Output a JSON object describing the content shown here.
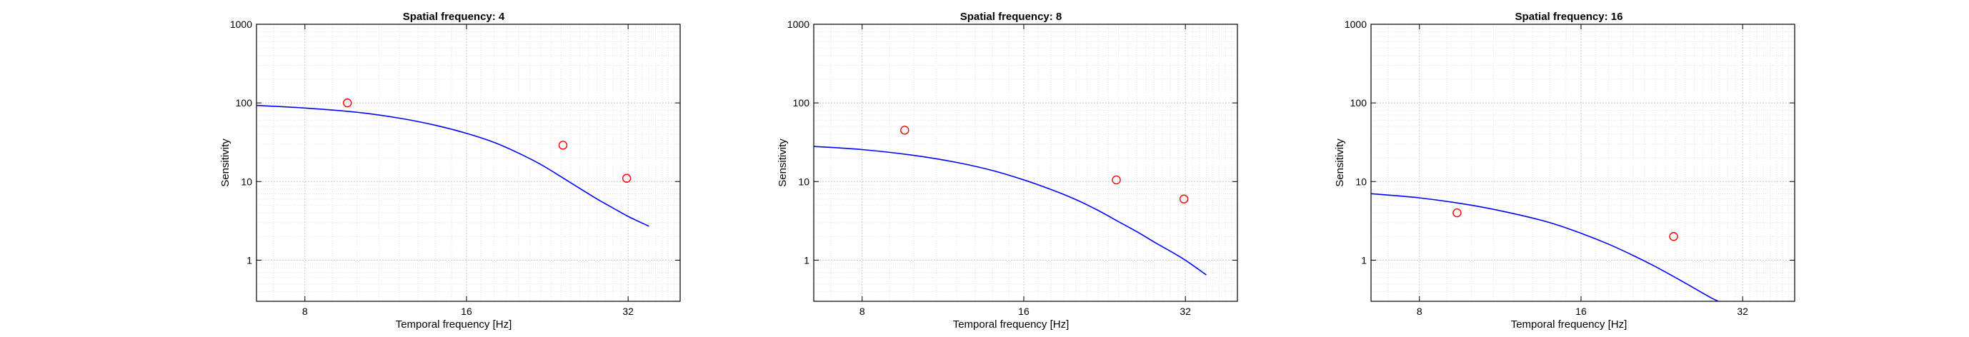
{
  "chart_data": [
    {
      "type": "line",
      "title": "Spatial frequency: 4",
      "xlabel": "Temporal frequency [Hz]",
      "ylabel": "Sensitivity",
      "xscale": "log2",
      "yscale": "log",
      "xlim": [
        6.5,
        40
      ],
      "ylim": [
        0.3,
        1000
      ],
      "xticks": [
        8,
        16,
        32
      ],
      "yticks": [
        1,
        10,
        100,
        1000
      ],
      "grid": true,
      "series": [
        {
          "kind": "line",
          "color": "#0000ff",
          "x": [
            6.5,
            8,
            10,
            12,
            14,
            16,
            18,
            20,
            22,
            24,
            26,
            28,
            30,
            32,
            35
          ],
          "y": [
            93,
            86,
            76,
            64,
            52,
            41,
            31.5,
            23,
            16.5,
            11.5,
            8.2,
            6.0,
            4.6,
            3.6,
            2.7
          ]
        },
        {
          "kind": "scatter",
          "marker": "circle",
          "color": "#ff0000",
          "x": [
            9.6,
            24.2,
            31.8
          ],
          "y": [
            100,
            29,
            11
          ]
        }
      ]
    },
    {
      "type": "line",
      "title": "Spatial frequency: 8",
      "xlabel": "Temporal frequency [Hz]",
      "ylabel": "Sensitivity",
      "xscale": "log2",
      "yscale": "log",
      "xlim": [
        6.5,
        40
      ],
      "ylim": [
        0.3,
        1000
      ],
      "xticks": [
        8,
        16,
        32
      ],
      "yticks": [
        1,
        10,
        100,
        1000
      ],
      "grid": true,
      "series": [
        {
          "kind": "line",
          "color": "#0000ff",
          "x": [
            6.5,
            8,
            10,
            12,
            14,
            16,
            18,
            20,
            22,
            24,
            26,
            28,
            30,
            32,
            35
          ],
          "y": [
            28,
            25.5,
            21.5,
            17.5,
            13.8,
            10.5,
            7.9,
            5.9,
            4.3,
            3.1,
            2.3,
            1.7,
            1.3,
            1.0,
            0.65
          ]
        },
        {
          "kind": "scatter",
          "marker": "circle",
          "color": "#ff0000",
          "x": [
            9.6,
            23.8,
            31.8
          ],
          "y": [
            45,
            10.5,
            6.0
          ]
        }
      ]
    },
    {
      "type": "line",
      "title": "Spatial frequency: 16",
      "xlabel": "Temporal frequency [Hz]",
      "ylabel": "Sensitivity",
      "xscale": "log2",
      "yscale": "log",
      "xlim": [
        6.5,
        40
      ],
      "ylim": [
        0.3,
        1000
      ],
      "xticks": [
        8,
        16,
        32
      ],
      "yticks": [
        1,
        10,
        100,
        1000
      ],
      "grid": true,
      "series": [
        {
          "kind": "line",
          "color": "#0000ff",
          "x": [
            6.5,
            8,
            10,
            12,
            14,
            16,
            18,
            20,
            22,
            24,
            26,
            28,
            29.5
          ],
          "y": [
            7.0,
            6.2,
            5.0,
            3.9,
            3.0,
            2.2,
            1.6,
            1.15,
            0.83,
            0.6,
            0.44,
            0.33,
            0.28
          ]
        },
        {
          "kind": "scatter",
          "marker": "circle",
          "color": "#ff0000",
          "x": [
            9.4,
            23.8
          ],
          "y": [
            4.0,
            2.0
          ]
        }
      ]
    }
  ]
}
